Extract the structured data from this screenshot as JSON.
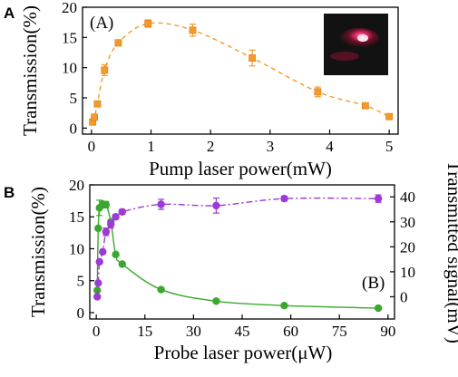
{
  "chart_data": [
    {
      "panel": "A",
      "panel_tag": "(A)",
      "type": "scatter",
      "xlabel": "Pump laser power(mW)",
      "ylabel": "Transmission(%)",
      "xlim": [
        0,
        5
      ],
      "ylim": [
        0,
        20
      ],
      "xticks": [
        0,
        1,
        2,
        3,
        4,
        5
      ],
      "yticks": [
        0,
        5,
        10,
        15,
        20
      ],
      "grid": false,
      "inset_photo": true,
      "series": [
        {
          "color": "#f39a2b",
          "marker": "square",
          "line": "dashed",
          "points": [
            {
              "x": 0.02,
              "y": 1.0,
              "err": 0.4
            },
            {
              "x": 0.05,
              "y": 1.8,
              "err": 0.4
            },
            {
              "x": 0.1,
              "y": 4.0,
              "err": 0.3
            },
            {
              "x": 0.22,
              "y": 9.6,
              "err": 0.9
            },
            {
              "x": 0.45,
              "y": 14.1,
              "err": 0.5
            },
            {
              "x": 0.95,
              "y": 17.3,
              "err": 0.6
            },
            {
              "x": 1.7,
              "y": 16.2,
              "err": 1.0
            },
            {
              "x": 2.7,
              "y": 11.6,
              "err": 1.3
            },
            {
              "x": 3.8,
              "y": 6.0,
              "err": 0.8
            },
            {
              "x": 4.6,
              "y": 3.7,
              "err": 0.3
            },
            {
              "x": 5.0,
              "y": 1.9,
              "err": 0.3
            }
          ]
        }
      ]
    },
    {
      "panel": "B",
      "panel_tag": "(B)",
      "type": "scatter",
      "xlabel": "Probe laser power(μW)",
      "ylabel": "Transmission(%)",
      "y2label": "Transmitted signal(mV)",
      "xlim": [
        -2,
        92
      ],
      "ylim": [
        -1,
        20
      ],
      "y2lim": [
        -8.9,
        44.8
      ],
      "xticks": [
        0,
        15,
        30,
        45,
        60,
        75,
        90
      ],
      "yticks": [
        0,
        5,
        10,
        15,
        20
      ],
      "y2ticks": [
        0,
        10,
        20,
        30,
        40
      ],
      "grid": false,
      "series": [
        {
          "color": "#3aa82c",
          "marker": "circle",
          "line": "solid",
          "axis": "left",
          "points": [
            {
              "x": 0.3,
              "y": 3.5
            },
            {
              "x": 0.6,
              "y": 13.2
            },
            {
              "x": 1.0,
              "y": 16.4,
              "err": 1.2
            },
            {
              "x": 2.0,
              "y": 17.0
            },
            {
              "x": 3.0,
              "y": 16.9,
              "err": 0.5
            },
            {
              "x": 4.5,
              "y": 14.2
            },
            {
              "x": 6.0,
              "y": 9.1
            },
            {
              "x": 8.0,
              "y": 7.6
            },
            {
              "x": 20.0,
              "y": 3.6
            },
            {
              "x": 37.0,
              "y": 1.8
            },
            {
              "x": 58.0,
              "y": 1.1
            },
            {
              "x": 87.0,
              "y": 0.7
            }
          ]
        },
        {
          "color": "#9b3ad6",
          "marker": "circle",
          "line": "dash-dot",
          "axis": "right",
          "points": [
            {
              "x": 0.3,
              "y": 0.0
            },
            {
              "x": 0.6,
              "y": 5.5
            },
            {
              "x": 1.0,
              "y": 14.0
            },
            {
              "x": 2.0,
              "y": 18.0
            },
            {
              "x": 3.0,
              "y": 26.0,
              "err": 1.5
            },
            {
              "x": 4.5,
              "y": 29.0,
              "err": 1.5
            },
            {
              "x": 6.0,
              "y": 32.0,
              "err": 1.0
            },
            {
              "x": 8.0,
              "y": 34.0,
              "err": 1.0
            },
            {
              "x": 20.0,
              "y": 37.0,
              "err": 2.0
            },
            {
              "x": 37.0,
              "y": 36.5,
              "err": 3.0
            },
            {
              "x": 58.0,
              "y": 39.3,
              "err": 1.0
            },
            {
              "x": 87.0,
              "y": 39.3,
              "err": 1.5
            }
          ]
        }
      ]
    }
  ]
}
